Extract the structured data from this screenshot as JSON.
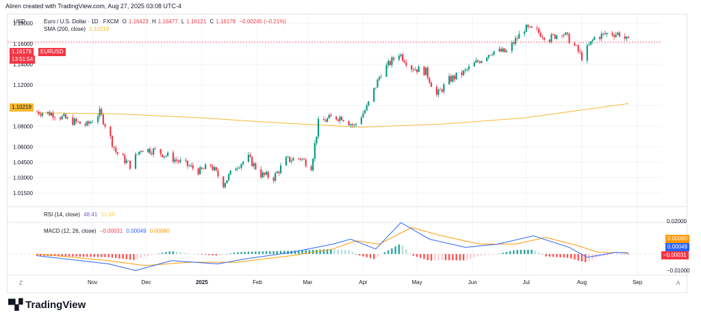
{
  "header": "Aliren created with TradingView.com, Aug 27, 2025 03:08 UTC-4",
  "currency_label": "USD",
  "legend": {
    "symbol": "Euro / U.S. Dollar · 1D · FXCM",
    "o_label": "O",
    "o_value": "1.16423",
    "h_label": "H",
    "h_value": "1.16477",
    "l_label": "L",
    "l_value": "1.16121",
    "c_label": "C",
    "c_value": "1.16178",
    "change": "−0.00245 (−0.21%)",
    "sma_label": "SMA (200, close)",
    "sma_value": "1.10219"
  },
  "price_tag": {
    "value": "1.16178",
    "symbol": "EURUSD",
    "countdown": "13:51:54"
  },
  "sma_tag": "1.10219",
  "rsi_legend": {
    "label": "RSI (14, close)",
    "v1": "48.41",
    "v2": "51.88"
  },
  "macd_legend": {
    "label": "MACD (12, 26, close)",
    "v1": "−0.00031",
    "v2": "0.00049",
    "v3": "0.00080"
  },
  "macd_tags": [
    "0.00080",
    "0.00049",
    "−0.00031"
  ],
  "brand": "TradingView",
  "colors": {
    "up": "#089981",
    "down": "#f23645",
    "sma": "#f7b731",
    "macd": "#2962ff",
    "signal": "#ff9800",
    "rsi1": "#7e57c2",
    "rsi2": "#fdd835",
    "grid": "#f0f3fa"
  },
  "chart_data": [
    {
      "type": "candlestick",
      "title": "Euro / U.S. Dollar · 1D · FXCM",
      "x_ticks": [
        "Nov",
        "Dec",
        "2025",
        "Feb",
        "Mar",
        "Apr",
        "May",
        "Jun",
        "Jul",
        "Aug",
        "Sep"
      ],
      "y_ticks": [
        "1.18000",
        "1.16000",
        "1.14000",
        "1.12000",
        "1.10000",
        "1.08000",
        "1.06000",
        "1.04500",
        "1.03000",
        "1.01500"
      ],
      "ylim": [
        1.005,
        1.188
      ],
      "close_points": [
        [
          "2024-10-01",
          1.094
        ],
        [
          "2024-10-10",
          1.092
        ],
        [
          "2024-10-20",
          1.085
        ],
        [
          "2024-10-29",
          1.081
        ],
        [
          "2024-11-05",
          1.093
        ],
        [
          "2024-11-08",
          1.082
        ],
        [
          "2024-11-14",
          1.055
        ],
        [
          "2024-11-22",
          1.042
        ],
        [
          "2024-11-28",
          1.058
        ],
        [
          "2024-12-06",
          1.056
        ],
        [
          "2024-12-13",
          1.051
        ],
        [
          "2024-12-20",
          1.045
        ],
        [
          "2024-12-31",
          1.036
        ],
        [
          "2025-01-06",
          1.042
        ],
        [
          "2025-01-13",
          1.024
        ],
        [
          "2025-01-20",
          1.041
        ],
        [
          "2025-01-27",
          1.049
        ],
        [
          "2025-02-03",
          1.033
        ],
        [
          "2025-02-10",
          1.03
        ],
        [
          "2025-02-17",
          1.047
        ],
        [
          "2025-02-25",
          1.049
        ],
        [
          "2025-03-03",
          1.041
        ],
        [
          "2025-03-07",
          1.083
        ],
        [
          "2025-03-14",
          1.088
        ],
        [
          "2025-03-20",
          1.089
        ],
        [
          "2025-03-27",
          1.08
        ],
        [
          "2025-04-03",
          1.098
        ],
        [
          "2025-04-11",
          1.132
        ],
        [
          "2025-04-21",
          1.151
        ],
        [
          "2025-04-28",
          1.137
        ],
        [
          "2025-05-06",
          1.133
        ],
        [
          "2025-05-12",
          1.11
        ],
        [
          "2025-05-19",
          1.125
        ],
        [
          "2025-05-27",
          1.132
        ],
        [
          "2025-06-04",
          1.143
        ],
        [
          "2025-06-12",
          1.153
        ],
        [
          "2025-06-20",
          1.152
        ],
        [
          "2025-06-30",
          1.175
        ],
        [
          "2025-07-07",
          1.172
        ],
        [
          "2025-07-14",
          1.165
        ],
        [
          "2025-07-21",
          1.172
        ],
        [
          "2025-07-28",
          1.158
        ],
        [
          "2025-08-01",
          1.147
        ],
        [
          "2025-08-08",
          1.166
        ],
        [
          "2025-08-15",
          1.17
        ],
        [
          "2025-08-22",
          1.17
        ],
        [
          "2025-08-27",
          1.162
        ]
      ],
      "sma_series": {
        "name": "SMA (200, close)",
        "points": [
          [
            "2024-10-01",
            1.093
          ],
          [
            "2024-11-15",
            1.092
          ],
          [
            "2025-01-01",
            1.088
          ],
          [
            "2025-02-15",
            1.083
          ],
          [
            "2025-03-31",
            1.079
          ],
          [
            "2025-05-15",
            1.082
          ],
          [
            "2025-06-30",
            1.088
          ],
          [
            "2025-08-27",
            1.102
          ]
        ]
      }
    },
    {
      "type": "line",
      "title": "MACD (12, 26, close)",
      "y_ticks": [
        "0.02000",
        "−0.01000"
      ],
      "ylim": [
        -0.012,
        0.022
      ],
      "series": [
        {
          "name": "MACD",
          "points": [
            [
              "2024-10-01",
              -0.001
            ],
            [
              "2024-11-10",
              -0.006
            ],
            [
              "2024-11-25",
              -0.01
            ],
            [
              "2024-12-15",
              -0.004
            ],
            [
              "2025-01-10",
              -0.006
            ],
            [
              "2025-01-25",
              -0.003
            ],
            [
              "2025-02-20",
              0.001
            ],
            [
              "2025-03-15",
              0.006
            ],
            [
              "2025-03-25",
              0.009
            ],
            [
              "2025-04-08",
              0.003
            ],
            [
              "2025-04-22",
              0.019
            ],
            [
              "2025-05-08",
              0.009
            ],
            [
              "2025-05-28",
              0.004
            ],
            [
              "2025-06-15",
              0.006
            ],
            [
              "2025-07-05",
              0.011
            ],
            [
              "2025-07-25",
              0.004
            ],
            [
              "2025-08-04",
              -0.002
            ],
            [
              "2025-08-20",
              0.001
            ],
            [
              "2025-08-27",
              0.0005
            ]
          ]
        },
        {
          "name": "Signal",
          "points": [
            [
              "2024-10-01",
              0.0
            ],
            [
              "2024-11-10",
              -0.004
            ],
            [
              "2024-11-30",
              -0.007
            ],
            [
              "2024-12-25",
              -0.005
            ],
            [
              "2025-01-20",
              -0.005
            ],
            [
              "2025-02-20",
              -0.001
            ],
            [
              "2025-03-15",
              0.003
            ],
            [
              "2025-03-28",
              0.008
            ],
            [
              "2025-04-10",
              0.006
            ],
            [
              "2025-04-28",
              0.016
            ],
            [
              "2025-05-15",
              0.011
            ],
            [
              "2025-06-05",
              0.006
            ],
            [
              "2025-06-25",
              0.006
            ],
            [
              "2025-07-12",
              0.01
            ],
            [
              "2025-07-30",
              0.005
            ],
            [
              "2025-08-10",
              0.001
            ],
            [
              "2025-08-27",
              0.0008
            ]
          ]
        }
      ]
    }
  ]
}
